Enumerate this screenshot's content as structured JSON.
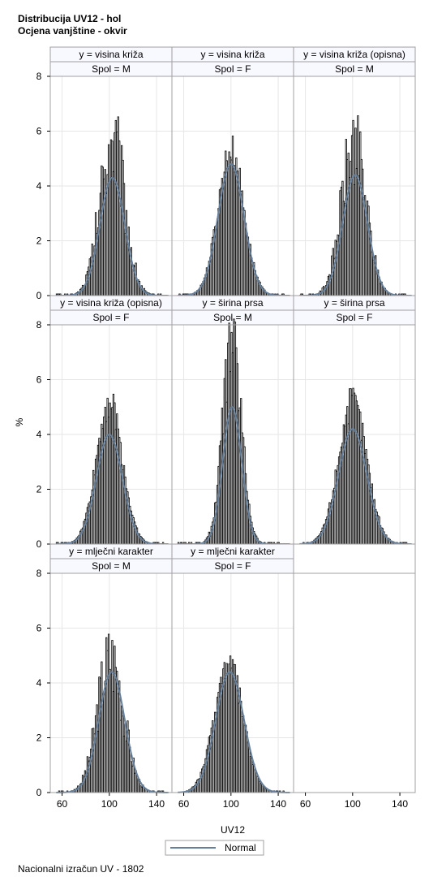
{
  "titles": [
    "Distribucija UV12 - hol",
    "Ocjena vanjštine - okvir"
  ],
  "footnote": "Nacionalni izračun UV - 1802",
  "colors": {
    "bar_fill": "#ffffff",
    "bar_stroke": "#000000",
    "curve": "#667f9a",
    "header_bg": "#f8f8ff",
    "grid": "#e6e6e6",
    "frame": "#a0a0a0"
  },
  "chart_data": {
    "type": "histogram-panel",
    "ylabel": "%",
    "xlabel": "UV12",
    "xlim": [
      50,
      153
    ],
    "ylim": [
      0,
      8
    ],
    "xticks": [
      60,
      100,
      140
    ],
    "yticks": [
      0,
      2,
      4,
      6,
      8
    ],
    "grid": true,
    "legend": {
      "position": "bottom",
      "entries": [
        "Normal"
      ]
    },
    "panels": [
      {
        "trait": "y = visina križa",
        "sex": "Spol = M",
        "mean": 102.5,
        "sd": 10.5,
        "peak": 5.6,
        "noise": 0.55,
        "x_range": [
          55,
          146
        ],
        "normal_curve": {
          "mean": 102.5,
          "peak": 4.3
        }
      },
      {
        "trait": "y = visina križa",
        "sex": "Spol = F",
        "mean": 100,
        "sd": 11,
        "peak": 5.3,
        "noise": 0.2,
        "x_range": [
          55,
          146
        ],
        "normal_curve": {
          "mean": 100,
          "peak": 4.8
        }
      },
      {
        "trait": "y = visina križa (opisna)",
        "sex": "Spol = M",
        "mean": 101,
        "sd": 10.5,
        "peak": 5.5,
        "noise": 0.45,
        "x_range": [
          55,
          146
        ],
        "normal_curve": {
          "mean": 102,
          "peak": 4.4
        }
      },
      {
        "trait": "y = visina križa (opisna)",
        "sex": "Spol = F",
        "mean": 100,
        "sd": 11,
        "peak": 5.2,
        "noise": 0.2,
        "x_range": [
          55,
          146
        ],
        "normal_curve": {
          "mean": 100,
          "peak": 4.0
        }
      },
      {
        "trait": "y = širina prsa",
        "sex": "Spol = M",
        "mean": 101,
        "sd": 8,
        "peak": 7.4,
        "noise": 0.3,
        "x_range": [
          55,
          146
        ],
        "normal_curve": {
          "mean": 101,
          "peak": 5.0
        }
      },
      {
        "trait": "y = širina prsa",
        "sex": "Spol = F",
        "mean": 100,
        "sd": 12,
        "peak": 5.2,
        "noise": 0.2,
        "x_range": [
          55,
          146
        ],
        "normal_curve": {
          "mean": 100,
          "peak": 4.2
        }
      },
      {
        "trait": "y = mlječni karakter",
        "sex": "Spol = M",
        "mean": 101,
        "sd": 11,
        "peak": 4.9,
        "noise": 0.5,
        "x_range": [
          55,
          146
        ],
        "normal_curve": {
          "mean": 102,
          "peak": 4.4
        }
      },
      {
        "trait": "y = mlječni karakter",
        "sex": "Spol = F",
        "mean": 98,
        "sd": 12,
        "peak": 4.7,
        "noise": 0.2,
        "x_range": [
          55,
          146
        ],
        "normal_curve": {
          "mean": 99,
          "peak": 4.4
        }
      }
    ]
  }
}
